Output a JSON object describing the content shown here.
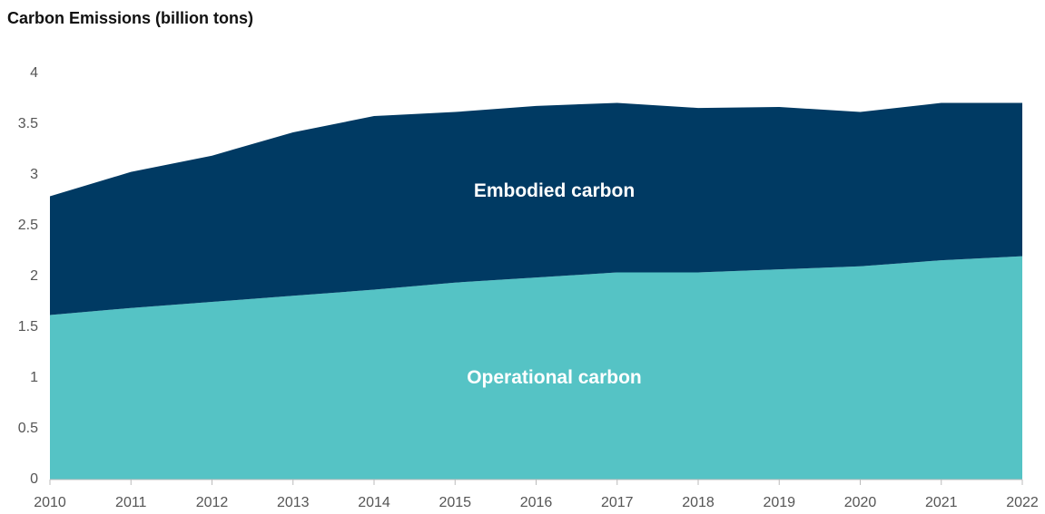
{
  "chart_data": {
    "type": "stacked_area",
    "title": "Carbon Emissions (billion tons)",
    "x": [
      2010,
      2011,
      2012,
      2013,
      2014,
      2015,
      2016,
      2017,
      2018,
      2019,
      2020,
      2021,
      2022
    ],
    "series": [
      {
        "name": "Operational carbon",
        "color": "#55c3c5",
        "values": [
          1.62,
          1.69,
          1.75,
          1.81,
          1.87,
          1.94,
          1.99,
          2.04,
          2.04,
          2.07,
          2.1,
          2.16,
          2.2
        ]
      },
      {
        "name": "Embodied carbon",
        "color": "#003a63",
        "values": [
          1.17,
          1.34,
          1.44,
          1.61,
          1.71,
          1.68,
          1.69,
          1.67,
          1.62,
          1.6,
          1.52,
          1.55,
          1.51
        ]
      }
    ],
    "xlim": [
      2010,
      2022
    ],
    "xticks": [
      2010,
      2011,
      2012,
      2013,
      2014,
      2015,
      2016,
      2017,
      2018,
      2019,
      2020,
      2021,
      2022
    ],
    "ylim": [
      0,
      4
    ],
    "yticks": [
      0,
      0.5,
      1,
      1.5,
      2,
      2.5,
      3,
      3.5,
      4
    ]
  }
}
